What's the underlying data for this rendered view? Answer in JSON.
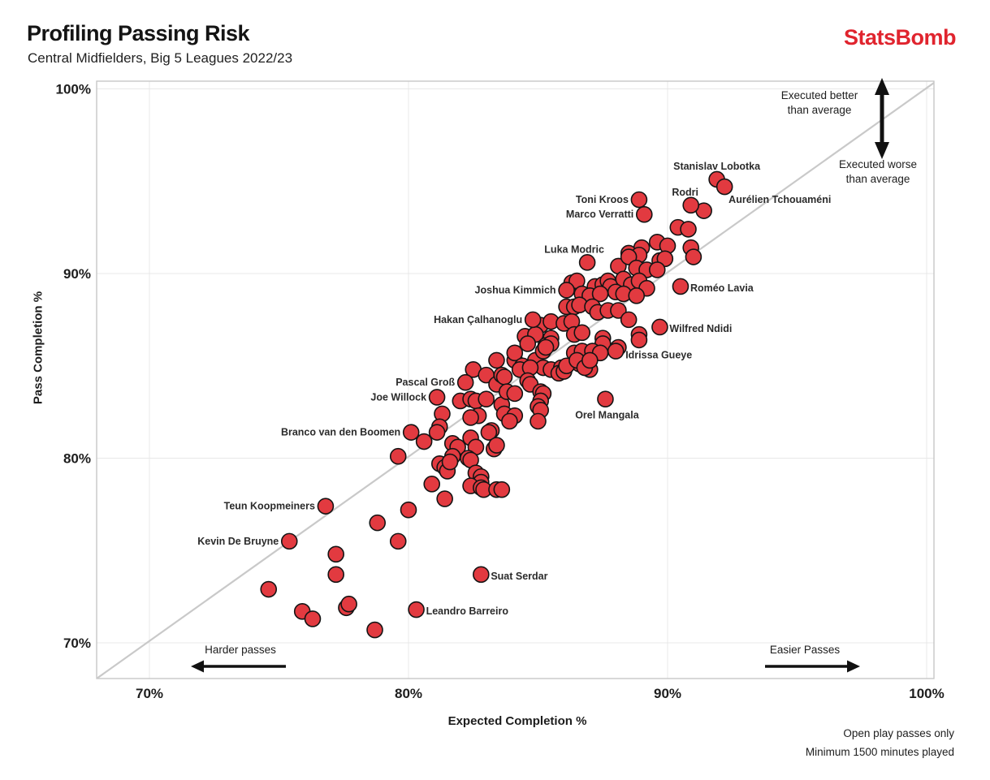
{
  "header": {
    "title": "Profiling Passing Risk",
    "subtitle": "Central Midfielders, Big 5 Leagues 2022/23",
    "logo": "StatsBomb"
  },
  "footnote": {
    "line1": "Open play passes only",
    "line2": "Minimum 1500 minutes played"
  },
  "chart_data": {
    "type": "scatter",
    "xlabel": "Expected Completion %",
    "ylabel": "Pass Completion %",
    "xlim": [
      67.95,
      100.3
    ],
    "ylim": [
      68.05,
      100.4
    ],
    "xticks": [
      70,
      80,
      90,
      100
    ],
    "yticks": [
      70,
      80,
      90,
      100
    ],
    "xtick_labels": [
      "70%",
      "80%",
      "90%",
      "100%"
    ],
    "ytick_labels": [
      "70%",
      "80%",
      "90%",
      "100%"
    ],
    "grid": true,
    "legend": "none",
    "reference_line": "y = x (average execution)",
    "marker_color": "#e23a40",
    "marker_edge_color": "#141414",
    "grid_color": "#e8e8e8",
    "border_color": "#c4c4c4",
    "diagonal_color": "#c9c9c9",
    "annotations": {
      "better": {
        "line1": "Executed better",
        "line2": "than average"
      },
      "worse": {
        "line1": "Executed worse",
        "line2": "than average"
      },
      "harder": "Harder passes",
      "easier": "Easier Passes"
    },
    "labeled_players": [
      {
        "name": "Stanislav Lobotka",
        "x": 91.9,
        "y": 95.1,
        "side": "above"
      },
      {
        "name": "Aurélien Tchouaméni",
        "x": 92.2,
        "y": 94.7,
        "side": "below-right"
      },
      {
        "name": "Toni Kroos",
        "x": 88.9,
        "y": 94.0,
        "side": "left"
      },
      {
        "name": "Rodri",
        "x": 90.9,
        "y": 93.7,
        "side": "above",
        "dx": -7
      },
      {
        "name": "Marco Verratti",
        "x": 89.1,
        "y": 93.2,
        "side": "left"
      },
      {
        "name": "Luka Modric",
        "x": 86.9,
        "y": 90.6,
        "side": "above",
        "dx": -16
      },
      {
        "name": "Joshua Kimmich",
        "x": 86.1,
        "y": 89.1,
        "side": "left"
      },
      {
        "name": "Roméo Lavia",
        "x": 90.5,
        "y": 89.3,
        "side": "right"
      },
      {
        "name": "Hakan Çalhanoglu",
        "x": 84.8,
        "y": 87.5,
        "side": "left"
      },
      {
        "name": "Wilfred Ndidi",
        "x": 89.7,
        "y": 87.1,
        "side": "right"
      },
      {
        "name": "Idrissa Gueye",
        "x": 88.0,
        "y": 85.8,
        "side": "right",
        "dy": 9
      },
      {
        "name": "Pascal Groß",
        "x": 82.2,
        "y": 84.1,
        "side": "left"
      },
      {
        "name": "Joe Willock",
        "x": 81.1,
        "y": 83.3,
        "side": "left"
      },
      {
        "name": "Branco van den Boomen",
        "x": 80.1,
        "y": 81.4,
        "side": "left"
      },
      {
        "name": "Orel Mangala",
        "x": 87.6,
        "y": 83.2,
        "side": "below"
      },
      {
        "name": "Teun Koopmeiners",
        "x": 76.8,
        "y": 77.4,
        "side": "left"
      },
      {
        "name": "Kevin De Bruyne",
        "x": 75.4,
        "y": 75.5,
        "side": "left"
      },
      {
        "name": "Suat Serdar",
        "x": 82.8,
        "y": 73.7,
        "side": "right"
      },
      {
        "name": "Leandro Barreiro",
        "x": 80.3,
        "y": 71.8,
        "side": "right"
      }
    ],
    "other_points": [
      [
        91.4,
        93.4
      ],
      [
        90.4,
        92.5
      ],
      [
        90.8,
        92.4
      ],
      [
        90.9,
        91.4
      ],
      [
        91.0,
        90.9
      ],
      [
        89.0,
        91.4
      ],
      [
        89.6,
        91.7
      ],
      [
        90.0,
        91.5
      ],
      [
        88.5,
        91.1
      ],
      [
        88.9,
        91.0
      ],
      [
        88.1,
        90.4
      ],
      [
        89.7,
        90.7
      ],
      [
        89.9,
        90.8
      ],
      [
        88.5,
        90.9
      ],
      [
        88.8,
        90.3
      ],
      [
        89.2,
        90.2
      ],
      [
        89.6,
        90.2
      ],
      [
        86.3,
        89.5
      ],
      [
        86.5,
        89.6
      ],
      [
        87.2,
        89.3
      ],
      [
        87.5,
        89.4
      ],
      [
        87.7,
        89.6
      ],
      [
        87.8,
        89.3
      ],
      [
        88.3,
        89.7
      ],
      [
        88.6,
        89.4
      ],
      [
        88.9,
        89.6
      ],
      [
        89.2,
        89.2
      ],
      [
        86.7,
        88.9
      ],
      [
        87.0,
        88.8
      ],
      [
        87.4,
        88.9
      ],
      [
        88.0,
        89.0
      ],
      [
        88.3,
        88.9
      ],
      [
        88.8,
        88.8
      ],
      [
        86.1,
        88.2
      ],
      [
        86.4,
        88.2
      ],
      [
        86.6,
        88.3
      ],
      [
        87.1,
        88.2
      ],
      [
        87.3,
        87.9
      ],
      [
        87.7,
        88.0
      ],
      [
        88.1,
        88.0
      ],
      [
        88.5,
        87.5
      ],
      [
        88.9,
        86.7
      ],
      [
        85.1,
        87.2
      ],
      [
        85.5,
        87.4
      ],
      [
        86.0,
        87.3
      ],
      [
        86.3,
        87.4
      ],
      [
        84.5,
        86.6
      ],
      [
        84.9,
        86.7
      ],
      [
        85.5,
        86.5
      ],
      [
        86.4,
        86.7
      ],
      [
        86.7,
        86.8
      ],
      [
        87.5,
        86.5
      ],
      [
        88.1,
        86.0
      ],
      [
        84.6,
        86.2
      ],
      [
        85.3,
        86.1
      ],
      [
        85.5,
        86.2
      ],
      [
        87.5,
        86.2
      ],
      [
        88.9,
        86.4
      ],
      [
        86.4,
        85.7
      ],
      [
        86.7,
        85.8
      ],
      [
        87.1,
        85.8
      ],
      [
        87.4,
        85.7
      ],
      [
        86.6,
        85.1
      ],
      [
        87.0,
        84.8
      ],
      [
        83.4,
        85.3
      ],
      [
        84.1,
        85.3
      ],
      [
        84.1,
        85.7
      ],
      [
        84.4,
        85.0
      ],
      [
        84.9,
        85.3
      ],
      [
        85.2,
        85.8
      ],
      [
        85.3,
        86.0
      ],
      [
        85.2,
        84.9
      ],
      [
        85.5,
        84.8
      ],
      [
        85.9,
        84.9
      ],
      [
        85.8,
        84.6
      ],
      [
        86.0,
        84.7
      ],
      [
        86.1,
        85.0
      ],
      [
        86.5,
        85.3
      ],
      [
        86.8,
        84.9
      ],
      [
        87.0,
        85.3
      ],
      [
        82.5,
        84.8
      ],
      [
        83.0,
        84.5
      ],
      [
        83.4,
        84.0
      ],
      [
        83.6,
        84.5
      ],
      [
        83.7,
        84.4
      ],
      [
        84.3,
        84.8
      ],
      [
        84.7,
        84.9
      ],
      [
        84.6,
        84.2
      ],
      [
        84.7,
        84.0
      ],
      [
        82.0,
        83.1
      ],
      [
        82.4,
        83.2
      ],
      [
        82.6,
        83.1
      ],
      [
        83.0,
        83.2
      ],
      [
        83.6,
        82.9
      ],
      [
        83.8,
        83.6
      ],
      [
        84.1,
        83.5
      ],
      [
        85.1,
        83.6
      ],
      [
        85.2,
        83.5
      ],
      [
        85.1,
        83.1
      ],
      [
        85.0,
        82.8
      ],
      [
        85.1,
        82.6
      ],
      [
        85.0,
        82.0
      ],
      [
        83.7,
        82.4
      ],
      [
        84.1,
        82.3
      ],
      [
        83.9,
        82.0
      ],
      [
        82.7,
        82.3
      ],
      [
        82.4,
        82.2
      ],
      [
        83.2,
        81.5
      ],
      [
        81.3,
        82.4
      ],
      [
        81.2,
        81.7
      ],
      [
        80.6,
        80.9
      ],
      [
        81.1,
        81.4
      ],
      [
        81.7,
        80.8
      ],
      [
        81.9,
        80.6
      ],
      [
        81.7,
        80.1
      ],
      [
        82.4,
        81.1
      ],
      [
        82.6,
        80.6
      ],
      [
        83.1,
        81.4
      ],
      [
        83.3,
        80.5
      ],
      [
        83.4,
        80.7
      ],
      [
        79.6,
        80.1
      ],
      [
        81.2,
        79.7
      ],
      [
        81.4,
        79.5
      ],
      [
        81.5,
        79.3
      ],
      [
        81.6,
        79.8
      ],
      [
        82.3,
        80.0
      ],
      [
        82.4,
        79.9
      ],
      [
        82.6,
        79.2
      ],
      [
        82.8,
        79.0
      ],
      [
        82.8,
        78.7
      ],
      [
        82.4,
        78.5
      ],
      [
        82.8,
        78.4
      ],
      [
        82.9,
        78.3
      ],
      [
        83.4,
        78.3
      ],
      [
        83.6,
        78.3
      ],
      [
        80.9,
        78.6
      ],
      [
        81.4,
        77.8
      ],
      [
        80.0,
        77.2
      ],
      [
        78.8,
        76.5
      ],
      [
        79.6,
        75.5
      ],
      [
        77.2,
        74.8
      ],
      [
        77.2,
        73.7
      ],
      [
        74.6,
        72.9
      ],
      [
        75.9,
        71.7
      ],
      [
        76.3,
        71.3
      ],
      [
        77.6,
        71.9
      ],
      [
        77.7,
        72.1
      ],
      [
        78.7,
        70.7
      ]
    ]
  }
}
